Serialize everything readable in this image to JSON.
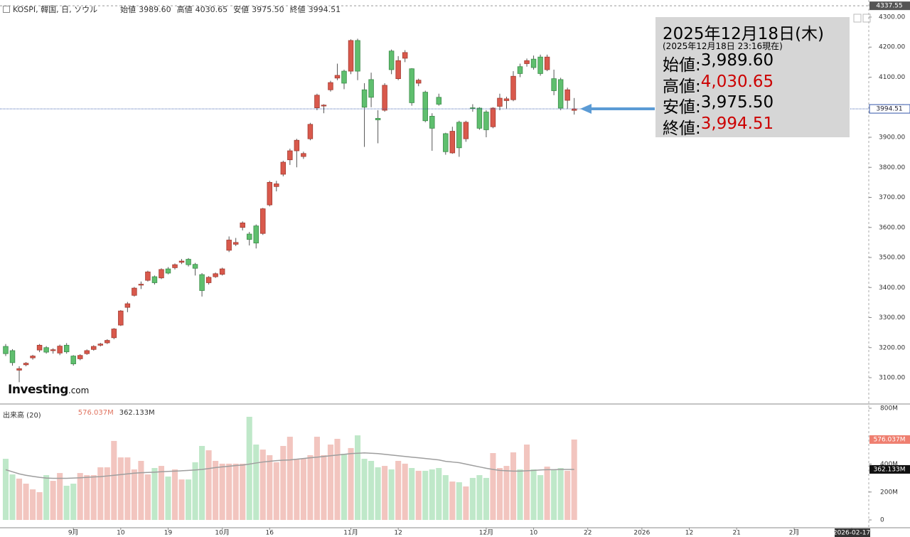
{
  "header": {
    "symbol": "KOSPI, 韓国, 日, ソウル",
    "ohlc": [
      {
        "label": "始値",
        "value": "3989.60"
      },
      {
        "label": "高値",
        "value": "4030.65"
      },
      {
        "label": "安値",
        "value": "3975.50"
      },
      {
        "label": "終値",
        "value": "3994.51"
      }
    ]
  },
  "info_box": {
    "date": "2025年12月18日(木)",
    "asof": "(2025年12月18日 23:16現在)",
    "rows": [
      {
        "label": "始値:",
        "value": "3,989.60",
        "color": "#000000"
      },
      {
        "label": "高値:",
        "value": "4,030.65",
        "color": "#cc0000"
      },
      {
        "label": "安値:",
        "value": "3,975.50",
        "color": "#000000"
      },
      {
        "label": "終値:",
        "value": "3,994.51",
        "color": "#cc0000"
      }
    ]
  },
  "brand": {
    "name": "Investing",
    "suffix": ".com"
  },
  "chart_data": [
    {
      "type": "candlestick",
      "open": [
        3204,
        3190,
        3125,
        3143,
        3166,
        3192,
        3200,
        3190,
        3182,
        3208,
        3172,
        3163,
        3180,
        3194,
        3208,
        3216,
        3233,
        3275,
        3334,
        3374,
        3408,
        3424,
        3436,
        3432,
        3462,
        3466,
        3484,
        3494,
        3477,
        3443,
        3416,
        3436,
        3444,
        3524,
        3544,
        3600,
        3578,
        3605,
        3580,
        3675,
        3736,
        3777,
        3825,
        3855,
        3836,
        3895,
        3998,
        4004,
        4058,
        4097,
        4120,
        4120,
        4222,
        4058,
        4092,
        3963,
        3990,
        4187,
        4095,
        4163,
        4128,
        4080,
        4050,
        3970,
        4033,
        3912,
        3848,
        3950,
        3895,
        3998,
        3997,
        3984,
        3935,
        4003,
        4022,
        4025,
        4135,
        4145,
        4160,
        4167,
        4125,
        4095,
        4092,
        4023,
        3989.6
      ],
      "high": [
        3212,
        3195,
        3138,
        3152,
        3176,
        3212,
        3205,
        3198,
        3210,
        3215,
        3175,
        3178,
        3194,
        3208,
        3216,
        3228,
        3265,
        3325,
        3352,
        3402,
        3420,
        3456,
        3440,
        3464,
        3468,
        3480,
        3495,
        3498,
        3482,
        3448,
        3438,
        3450,
        3466,
        3570,
        3565,
        3620,
        3585,
        3610,
        3665,
        3755,
        3755,
        3822,
        3862,
        3895,
        3852,
        3948,
        4045,
        4010,
        4088,
        4145,
        4125,
        4226,
        4228,
        4080,
        4115,
        3990,
        4080,
        4192,
        4170,
        4190,
        4130,
        4095,
        4055,
        3980,
        4045,
        3915,
        3935,
        3955,
        3955,
        4010,
        4000,
        3990,
        4000,
        4045,
        4035,
        4120,
        4145,
        4162,
        4172,
        4175,
        4175,
        4125,
        4098,
        4065,
        4030.65
      ],
      "low": [
        3172,
        3140,
        3085,
        3138,
        3160,
        3185,
        3180,
        3180,
        3175,
        3180,
        3140,
        3158,
        3176,
        3190,
        3204,
        3212,
        3228,
        3272,
        3318,
        3370,
        3395,
        3420,
        3410,
        3428,
        3444,
        3460,
        3478,
        3470,
        3440,
        3370,
        3410,
        3432,
        3440,
        3518,
        3538,
        3590,
        3540,
        3530,
        3575,
        3670,
        3720,
        3770,
        3808,
        3800,
        3828,
        3890,
        3990,
        3980,
        4052,
        4090,
        4060,
        4110,
        4090,
        3868,
        4000,
        3880,
        3985,
        4110,
        4090,
        4150,
        4005,
        4070,
        3950,
        3855,
        4005,
        3842,
        3845,
        3835,
        3885,
        3985,
        3925,
        3900,
        3930,
        3990,
        3995,
        4020,
        4100,
        4135,
        4125,
        4105,
        4120,
        4040,
        3990,
        3995,
        3975.5
      ],
      "close": [
        3180,
        3150,
        3130,
        3148,
        3172,
        3208,
        3185,
        3193,
        3205,
        3186,
        3146,
        3174,
        3190,
        3204,
        3212,
        3224,
        3262,
        3322,
        3346,
        3398,
        3411,
        3452,
        3416,
        3460,
        3448,
        3476,
        3488,
        3476,
        3464,
        3390,
        3434,
        3446,
        3462,
        3558,
        3550,
        3615,
        3560,
        3548,
        3662,
        3750,
        3745,
        3817,
        3855,
        3890,
        3846,
        3943,
        4040,
        4007,
        4082,
        4106,
        4080,
        4222,
        4120,
        4000,
        4033,
        3958,
        4073,
        4125,
        4155,
        4182,
        4015,
        4090,
        3955,
        3930,
        4010,
        3852,
        3920,
        3865,
        3950,
        3996,
        3930,
        3925,
        3997,
        4030,
        4028,
        4103,
        4112,
        4155,
        4132,
        4112,
        4167,
        4055,
        3997,
        4058,
        3994.51
      ],
      "up_color": "#d9594c",
      "down_color": "#5fbf6e",
      "xlim": [
        -0.84,
        127.52
      ],
      "ylim": [
        3014.8,
        4356.8
      ],
      "yticks": [
        {
          "value": 4300,
          "label": "4300.00"
        },
        {
          "value": 4200,
          "label": "4200.00"
        },
        {
          "value": 4100,
          "label": "4100.00"
        },
        {
          "value": 4000,
          "label": "4000.00"
        },
        {
          "value": 3900,
          "label": "3900.00"
        },
        {
          "value": 3800,
          "label": "3800.00"
        },
        {
          "value": 3700,
          "label": "3700.00"
        },
        {
          "value": 3600,
          "label": "3600.00"
        },
        {
          "value": 3500,
          "label": "3500.00"
        },
        {
          "value": 3400,
          "label": "3400.00"
        },
        {
          "value": 3300,
          "label": "3300.00"
        },
        {
          "value": 3200,
          "label": "3200.00"
        },
        {
          "value": 3100,
          "label": "3100.00"
        }
      ],
      "marker": 4337.55
    },
    {
      "type": "bar",
      "title": "出来高 (20)",
      "series": [
        {
          "up_color": "#f2c5bf",
          "down_color": "#bfe8c9",
          "label_color": "#ef7f70",
          "values": [
            438,
            326,
            296,
            260,
            219,
            199,
            321,
            280,
            336,
            245,
            260,
            336,
            321,
            321,
            377,
            377,
            566,
            448,
            448,
            362,
            423,
            326,
            372,
            387,
            311,
            362,
            290,
            290,
            413,
            530,
            499,
            423,
            403,
            403,
            403,
            403,
            739,
            540,
            504,
            464,
            413,
            530,
            596,
            438,
            438,
            464,
            596,
            464,
            540,
            581,
            474,
            515,
            606,
            438,
            423,
            377,
            387,
            362,
            423,
            403,
            372,
            352,
            352,
            362,
            372,
            321,
            275,
            270,
            240,
            301,
            321,
            301,
            479,
            372,
            387,
            484,
            362,
            540,
            362,
            321,
            382,
            362,
            372,
            352,
            576.037
          ],
          "value_labels": [
            null,
            null,
            null,
            null,
            null,
            null,
            null,
            null,
            null,
            null,
            null,
            null,
            null,
            null,
            null,
            null,
            null,
            null,
            null,
            null,
            null,
            null,
            null,
            null,
            null,
            null,
            null,
            null,
            null,
            null,
            null,
            null,
            null,
            null,
            null,
            null,
            null,
            null,
            null,
            null,
            null,
            null,
            null,
            null,
            null,
            null,
            null,
            null,
            null,
            null,
            null,
            null,
            null,
            null,
            null,
            null,
            null,
            null,
            null,
            null,
            null,
            null,
            null,
            null,
            null,
            null,
            null,
            null,
            null,
            null,
            null,
            null,
            null,
            null,
            null,
            null,
            null,
            null,
            null,
            null,
            null,
            null,
            null,
            null,
            "576.037M"
          ]
        },
        {
          "type": "line",
          "color": "#9e9e9e",
          "label_color": "#111111",
          "values": [
            360,
            345,
            330,
            320,
            312,
            305,
            300,
            298,
            298,
            298,
            300,
            302,
            305,
            308,
            310,
            315,
            320,
            325,
            330,
            335,
            338,
            340,
            342,
            345,
            348,
            350,
            352,
            355,
            358,
            362,
            368,
            375,
            380,
            385,
            390,
            393,
            400,
            408,
            415,
            420,
            425,
            428,
            430,
            435,
            440,
            445,
            450,
            455,
            460,
            465,
            470,
            475,
            478,
            480,
            478,
            475,
            470,
            465,
            460,
            455,
            450,
            445,
            440,
            435,
            430,
            420,
            415,
            410,
            400,
            390,
            380,
            370,
            362,
            355,
            352,
            350,
            350,
            352,
            355,
            358,
            360,
            360,
            362,
            362,
            362.133
          ],
          "value_labels": [
            null,
            null,
            null,
            null,
            null,
            null,
            null,
            null,
            null,
            null,
            null,
            null,
            null,
            null,
            null,
            null,
            null,
            null,
            null,
            null,
            null,
            null,
            null,
            null,
            null,
            null,
            null,
            null,
            null,
            null,
            null,
            null,
            null,
            null,
            null,
            null,
            null,
            null,
            null,
            null,
            null,
            null,
            null,
            null,
            null,
            null,
            null,
            null,
            null,
            null,
            null,
            null,
            null,
            null,
            null,
            null,
            null,
            null,
            null,
            null,
            null,
            null,
            null,
            null,
            null,
            null,
            null,
            null,
            null,
            null,
            null,
            null,
            null,
            null,
            null,
            null,
            null,
            null,
            null,
            null,
            null,
            null,
            null,
            null,
            "362.133M"
          ]
        }
      ],
      "xlim": [
        -0.84,
        127.52
      ],
      "ylim": [
        -56,
        830.6
      ],
      "yticks": [
        {
          "value": 800,
          "label": "800M"
        },
        {
          "value": 400,
          "label": "400M"
        },
        {
          "value": 200,
          "label": "200M"
        },
        0
      ],
      "xticks": [
        {
          "value": 10,
          "label": "9月"
        },
        {
          "value": 17,
          "label": "10"
        },
        {
          "value": 24,
          "label": "19"
        },
        {
          "value": 32,
          "label": "10月"
        },
        {
          "value": 39,
          "label": "16"
        },
        {
          "value": 51,
          "label": "11月"
        },
        {
          "value": 58,
          "label": "12"
        },
        {
          "value": 71,
          "label": "12月"
        },
        {
          "value": 78,
          "label": "10"
        },
        {
          "value": 86,
          "label": "22"
        },
        {
          "value": 94,
          "label": "2026"
        },
        {
          "value": 101,
          "label": "12"
        },
        {
          "value": 108,
          "label": "21"
        },
        {
          "value": 116.5,
          "label": "2月"
        },
        {
          "value": 125,
          "label": "2026-02-17"
        }
      ]
    }
  ]
}
